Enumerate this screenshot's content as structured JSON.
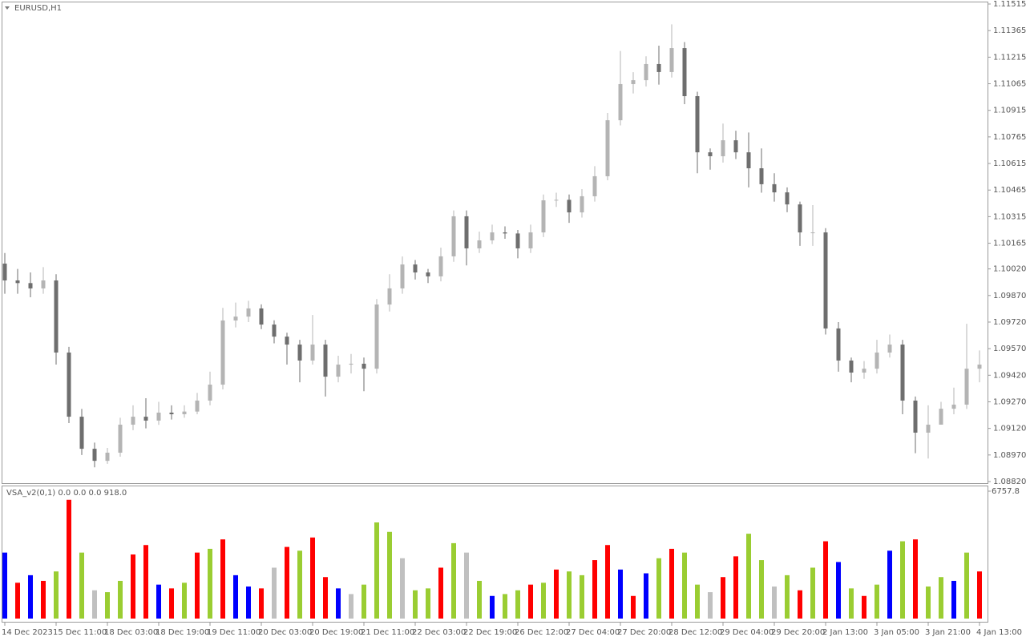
{
  "chart_data": [
    {
      "type": "candlestick",
      "title": "EURUSD,H1",
      "categories": [
        "14 Dec 2023",
        null,
        null,
        null,
        "15 Dec 11:00",
        null,
        null,
        null,
        "18 Dec 03:00",
        null,
        null,
        null,
        "18 Dec 19:00",
        null,
        null,
        null,
        "19 Dec 11:00",
        null,
        null,
        null,
        "20 Dec 03:00",
        null,
        null,
        null,
        "20 Dec 19:00",
        null,
        null,
        null,
        "21 Dec 11:00",
        null,
        null,
        null,
        "22 Dec 03:00",
        null,
        null,
        null,
        "22 Dec 19:00",
        null,
        null,
        null,
        "26 Dec 12:00",
        null,
        null,
        null,
        "27 Dec 04:00",
        null,
        null,
        null,
        "27 Dec 20:00",
        null,
        null,
        null,
        "28 Dec 12:00",
        null,
        null,
        null,
        "29 Dec 04:00",
        null,
        null,
        null,
        "29 Dec 20:00",
        null,
        null,
        null,
        "2 Jan 13:00",
        null,
        null,
        null,
        "3 Jan 05:00",
        null,
        null,
        null,
        "3 Jan 21:00",
        null,
        null,
        null,
        "4 Jan 13:00"
      ],
      "open": [
        1.1005,
        1.09955,
        1.0994,
        1.0991,
        1.09955,
        1.09548,
        1.09186,
        1.09005,
        1.08937,
        1.08983,
        1.09141,
        1.09186,
        1.09164,
        1.09209,
        1.092,
        1.09215,
        1.09277,
        1.09367,
        1.09729,
        1.09751,
        1.09797,
        1.09706,
        1.09638,
        1.09593,
        1.09503,
        1.09593,
        1.09412,
        1.0948,
        1.09485,
        1.09457,
        1.09819,
        1.0991,
        1.10045,
        1.1,
        1.09978,
        1.10091,
        1.10317,
        1.10136,
        1.10181,
        1.10226,
        1.1022,
        1.10136,
        1.10226,
        1.10407,
        1.1041,
        1.10339,
        1.1043,
        1.10543,
        1.10859,
        1.11063,
        1.11085,
        1.11176,
        1.11131,
        1.11266,
        1.10995,
        1.10678,
        1.10656,
        1.10746,
        1.10678,
        1.10588,
        1.10498,
        1.10452,
        1.10384,
        1.10226,
        1.10226,
        1.09684,
        1.09503,
        1.09435,
        1.09457,
        1.09548,
        1.09593,
        1.09277,
        1.09096,
        1.09141,
        1.09231,
        1.09254,
        1.09457
      ],
      "high": [
        1.1011,
        1.1002,
        1.1,
        1.1003,
        1.0999,
        1.0958,
        1.0923,
        1.0904,
        1.0901,
        1.0918,
        1.0925,
        1.0929,
        1.0927,
        1.0925,
        1.0925,
        1.0932,
        1.0944,
        1.098,
        1.0983,
        1.0984,
        1.0982,
        1.0973,
        1.0966,
        1.0962,
        1.0976,
        1.0962,
        1.0953,
        1.0954,
        1.0952,
        1.0985,
        1.0999,
        1.1009,
        1.1007,
        1.1002,
        1.1014,
        1.1035,
        1.1035,
        1.1023,
        1.1027,
        1.1026,
        1.1024,
        1.1027,
        1.1044,
        1.1045,
        1.1044,
        1.1047,
        1.106,
        1.109,
        1.1125,
        1.1113,
        1.1122,
        1.1128,
        1.114,
        1.113,
        1.1102,
        1.107,
        1.1084,
        1.108,
        1.1079,
        1.107,
        1.1056,
        1.1048,
        1.104,
        1.1038,
        1.1025,
        1.0972,
        1.0952,
        1.095,
        1.0962,
        1.0965,
        1.0962,
        1.093,
        1.0925,
        1.0927,
        1.0935,
        1.0971,
        1.0956
      ],
      "low": [
        1.0988,
        1.0988,
        1.0986,
        1.0988,
        1.0948,
        1.0915,
        1.0897,
        1.089,
        1.0892,
        1.0896,
        1.0911,
        1.0912,
        1.0914,
        1.0917,
        1.0918,
        1.092,
        1.0925,
        1.0934,
        1.0969,
        1.0972,
        1.0968,
        1.096,
        1.0948,
        1.0938,
        1.0948,
        1.093,
        1.0938,
        1.0943,
        1.0933,
        1.0943,
        1.0978,
        1.0988,
        1.0996,
        1.0994,
        1.0995,
        1.1006,
        1.1004,
        1.1011,
        1.1016,
        1.1019,
        1.1008,
        1.1011,
        1.102,
        1.1037,
        1.1028,
        1.1031,
        1.104,
        1.1052,
        1.1083,
        1.1101,
        1.1105,
        1.1106,
        1.111,
        1.1095,
        1.1056,
        1.1058,
        1.1062,
        1.1064,
        1.1048,
        1.1045,
        1.104,
        1.1034,
        1.1015,
        1.1015,
        1.0965,
        1.0944,
        1.0938,
        1.094,
        1.0943,
        1.0952,
        1.092,
        1.0898,
        1.0895,
        1.0916,
        1.092,
        1.0923,
        1.0938
      ],
      "close": [
        1.09955,
        1.0994,
        1.0991,
        1.09955,
        1.09548,
        1.09186,
        1.09005,
        1.08937,
        1.08983,
        1.09141,
        1.09186,
        1.09164,
        1.09209,
        1.092,
        1.09215,
        1.09277,
        1.09367,
        1.09729,
        1.09751,
        1.09797,
        1.09706,
        1.09638,
        1.09593,
        1.09503,
        1.09593,
        1.09412,
        1.0948,
        1.09485,
        1.09457,
        1.09819,
        1.0991,
        1.10045,
        1.1,
        1.09978,
        1.10091,
        1.10317,
        1.10136,
        1.10181,
        1.10226,
        1.1022,
        1.10136,
        1.10226,
        1.10407,
        1.1041,
        1.10339,
        1.1043,
        1.10543,
        1.10859,
        1.11063,
        1.11085,
        1.11176,
        1.11131,
        1.11266,
        1.10995,
        1.10678,
        1.10656,
        1.10746,
        1.10678,
        1.10588,
        1.10498,
        1.10452,
        1.10384,
        1.10226,
        1.10226,
        1.09684,
        1.09503,
        1.09435,
        1.09457,
        1.09548,
        1.09593,
        1.09277,
        1.09096,
        1.09141,
        1.09231,
        1.09254,
        1.09457,
        1.0948
      ],
      "up_color": "#b4b4b4",
      "down_color": "#6e6e6e",
      "ylim": [
        1.0882,
        1.11515
      ],
      "yticks": [
        1.11515,
        1.11365,
        1.11215,
        1.11065,
        1.10915,
        1.10765,
        1.10615,
        1.10465,
        1.10315,
        1.10165,
        {
          "value": 1.1002,
          "label": "1.10020"
        },
        {
          "value": 1.0987,
          "label": "1.09870"
        },
        {
          "value": 1.0972,
          "label": "1.09720"
        },
        {
          "value": 1.0957,
          "label": "1.09570"
        },
        {
          "value": 1.0942,
          "label": "1.09420"
        },
        {
          "value": 1.0927,
          "label": "1.09270"
        },
        {
          "value": 1.0912,
          "label": "1.09120"
        },
        {
          "value": 1.0897,
          "label": "1.08970"
        },
        {
          "value": 1.0882,
          "label": "1.08820"
        }
      ]
    },
    {
      "type": "bar",
      "title": "VSA_v2(0,1) 0.0 0.0 0.0 918.0",
      "values": [
        3500,
        1900,
        2300,
        2000,
        2500,
        6300,
        3500,
        1500,
        1400,
        2000,
        3400,
        3900,
        1800,
        1600,
        1900,
        3500,
        3700,
        4200,
        2300,
        1700,
        1600,
        2700,
        3800,
        3600,
        4300,
        2200,
        1600,
        1300,
        1800,
        5100,
        4600,
        3200,
        1500,
        1600,
        2700,
        4000,
        3500,
        2000,
        1200,
        1300,
        1500,
        1800,
        1900,
        2600,
        2500,
        2300,
        3100,
        3900,
        2600,
        1200,
        2400,
        3200,
        3700,
        3500,
        1800,
        1400,
        2200,
        3300,
        4500,
        3100,
        1700,
        2300,
        1500,
        2700,
        4100,
        3000,
        1600,
        1200,
        1800,
        3600,
        4100,
        4200,
        1700,
        2200,
        2000,
        3500,
        2500
      ],
      "colors": [
        "#0000ff",
        "#ff0000",
        "#0000ff",
        "#ff0000",
        "#9acd32",
        "#ff0000",
        "#9acd32",
        "#c0c0c0",
        "#9acd32",
        "#9acd32",
        "#ff0000",
        "#ff0000",
        "#0000ff",
        "#ff0000",
        "#9acd32",
        "#ff0000",
        "#9acd32",
        "#ff0000",
        "#0000ff",
        "#0000ff",
        "#ff0000",
        "#c0c0c0",
        "#ff0000",
        "#9acd32",
        "#ff0000",
        "#ff0000",
        "#0000ff",
        "#c0c0c0",
        "#9acd32",
        "#9acd32",
        "#9acd32",
        "#c0c0c0",
        "#9acd32",
        "#9acd32",
        "#ff0000",
        "#9acd32",
        "#c0c0c0",
        "#9acd32",
        "#0000ff",
        "#9acd32",
        "#9acd32",
        "#ff0000",
        "#9acd32",
        "#ff0000",
        "#9acd32",
        "#9acd32",
        "#ff0000",
        "#ff0000",
        "#0000ff",
        "#ff0000",
        "#0000ff",
        "#9acd32",
        "#ff0000",
        "#9acd32",
        "#9acd32",
        "#c0c0c0",
        "#ff0000",
        "#ff0000",
        "#9acd32",
        "#9acd32",
        "#c0c0c0",
        "#9acd32",
        "#ff0000",
        "#9acd32",
        "#ff0000",
        "#0000ff",
        "#9acd32",
        "#ff0000",
        "#9acd32",
        "#0000ff",
        "#9acd32",
        "#ff0000",
        "#9acd32",
        "#9acd32",
        "#0000ff",
        "#9acd32",
        "#ff0000"
      ],
      "ylim": [
        0,
        6757.8
      ],
      "yticks": [
        6757.8
      ]
    }
  ]
}
